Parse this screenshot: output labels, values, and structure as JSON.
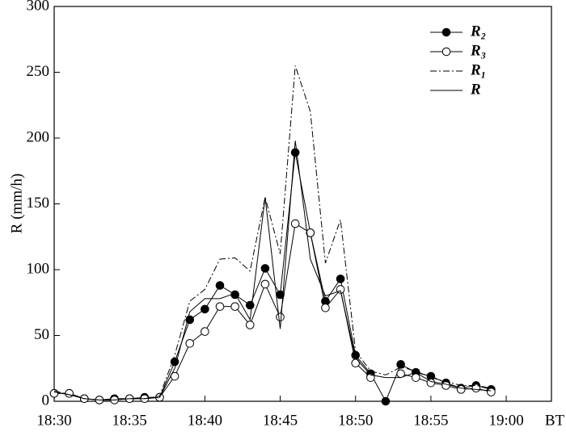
{
  "chart_data": {
    "type": "line",
    "y_label": "R (mm/h)",
    "x_unit_label": "BT",
    "x": [
      0,
      1,
      2,
      3,
      4,
      5,
      6,
      7,
      8,
      9,
      10,
      11,
      12,
      13,
      14,
      15,
      16,
      17,
      18,
      19,
      20,
      21,
      22,
      23,
      24,
      25,
      26,
      27,
      28,
      29
    ],
    "xlim": [
      0,
      33
    ],
    "ylim": [
      0,
      300
    ],
    "xticks": [
      {
        "value": 0,
        "label": "18:30"
      },
      {
        "value": 5,
        "label": "18:35"
      },
      {
        "value": 10,
        "label": "18:40"
      },
      {
        "value": 15,
        "label": "18:45"
      },
      {
        "value": 20,
        "label": "18:50"
      },
      {
        "value": 25,
        "label": "18:55"
      },
      {
        "value": 30,
        "label": "19:00"
      }
    ],
    "yticks": [
      0,
      50,
      100,
      150,
      200,
      250,
      300
    ],
    "series": [
      {
        "name": "R₂",
        "color": "#000000",
        "marker": "filled",
        "dash": "solid",
        "values": [
          6,
          6,
          2,
          1,
          2,
          2,
          3,
          3,
          30,
          62,
          70,
          88,
          81,
          73,
          101,
          81,
          189,
          128,
          76,
          93,
          35,
          21,
          0,
          28,
          22,
          19,
          14,
          10,
          12,
          9
        ]
      },
      {
        "name": "R₃",
        "color": "#000000",
        "marker": "open",
        "dash": "solid",
        "values": [
          6,
          6,
          2,
          1,
          1,
          2,
          2,
          3,
          19,
          44,
          53,
          72,
          72,
          58,
          89,
          64,
          135,
          128,
          71,
          85,
          29,
          18,
          null,
          21,
          18,
          14,
          12,
          9,
          10,
          7
        ]
      },
      {
        "name": "R₁",
        "color": "#000000",
        "marker": "none",
        "dash": "dashdot",
        "values": [
          8,
          5,
          2,
          1,
          1,
          2,
          2,
          4,
          35,
          76,
          85,
          108,
          109,
          99,
          155,
          112,
          255,
          220,
          105,
          138,
          38,
          23,
          20,
          26,
          23,
          18,
          15,
          12,
          12,
          10
        ]
      },
      {
        "name": "R",
        "color": "#000000",
        "marker": "none",
        "dash": "solid",
        "values": [
          7,
          5,
          2,
          1,
          1,
          2,
          2,
          3,
          25,
          68,
          78,
          78,
          82,
          62,
          155,
          55,
          198,
          108,
          80,
          84,
          33,
          20,
          18,
          18,
          22,
          15,
          13,
          10,
          9,
          8
        ]
      }
    ]
  }
}
